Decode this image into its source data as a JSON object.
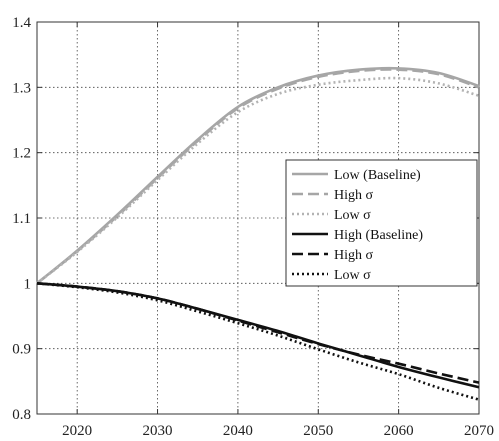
{
  "chart_data": {
    "type": "line",
    "title": "",
    "xlabel": "",
    "ylabel": "",
    "xlim": [
      2015,
      2070
    ],
    "ylim": [
      0.8,
      1.4
    ],
    "grid": true,
    "legend_position": "center-right",
    "x_ticks": [
      "2020",
      "2030",
      "2040",
      "2050",
      "2060",
      "2070"
    ],
    "y_ticks": [
      "0.8",
      "0.9",
      "1",
      "1.1",
      "1.2",
      "1.3",
      "1.4"
    ],
    "x": [
      2015,
      2020,
      2025,
      2030,
      2035,
      2040,
      2045,
      2050,
      2055,
      2060,
      2065,
      2070
    ],
    "series": [
      {
        "name": "Low (Baseline)",
        "color": "#a6a6a6",
        "dash": "solid",
        "values": [
          1.0,
          1.05,
          1.105,
          1.163,
          1.22,
          1.27,
          1.3,
          1.318,
          1.327,
          1.329,
          1.322,
          1.302
        ]
      },
      {
        "name": "High σ",
        "color": "#a6a6a6",
        "dash": "dashed",
        "values": [
          1.0,
          1.049,
          1.103,
          1.161,
          1.218,
          1.268,
          1.298,
          1.316,
          1.325,
          1.327,
          1.32,
          1.3
        ]
      },
      {
        "name": "Low σ",
        "color": "#b3b3b3",
        "dash": "dotted",
        "values": [
          1.0,
          1.048,
          1.101,
          1.158,
          1.214,
          1.262,
          1.29,
          1.304,
          1.311,
          1.314,
          1.306,
          1.287
        ]
      },
      {
        "name": "High (Baseline)",
        "color": "#111111",
        "dash": "solid",
        "values": [
          1.0,
          0.995,
          0.988,
          0.977,
          0.961,
          0.944,
          0.927,
          0.908,
          0.89,
          0.872,
          0.856,
          0.841
        ]
      },
      {
        "name": "High σ",
        "color": "#111111",
        "dash": "dashed",
        "values": [
          1.0,
          0.995,
          0.988,
          0.977,
          0.961,
          0.943,
          0.925,
          0.907,
          0.891,
          0.877,
          0.862,
          0.848
        ]
      },
      {
        "name": "Low σ",
        "color": "#111111",
        "dash": "dotted",
        "values": [
          1.0,
          0.994,
          0.986,
          0.974,
          0.957,
          0.939,
          0.92,
          0.899,
          0.879,
          0.861,
          0.84,
          0.822
        ]
      }
    ]
  }
}
